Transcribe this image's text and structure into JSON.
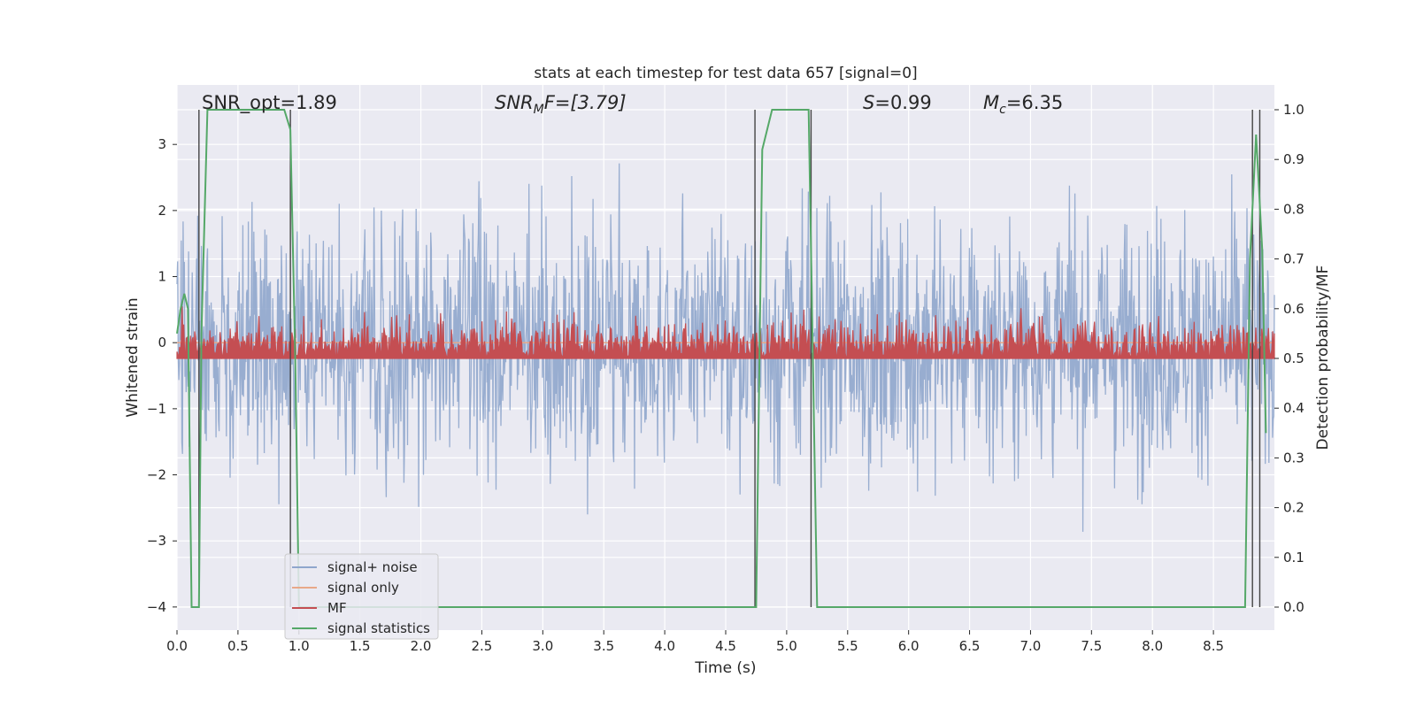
{
  "chart_data": {
    "type": "line",
    "title": "stats at each timestep for test data 657 [signal=0]",
    "xlabel": "Time (s)",
    "ylabel_left": "Whitened strain",
    "ylabel_right": "Detection probability/MF",
    "xlim": [
      0.0,
      9.0
    ],
    "ylim_left": [
      -4.35,
      3.9
    ],
    "ylim_right": [
      0.0,
      1.0
    ],
    "xticks": [
      "0.0",
      "0.5",
      "1.0",
      "1.5",
      "2.0",
      "2.5",
      "3.0",
      "3.5",
      "4.0",
      "4.5",
      "5.0",
      "5.5",
      "6.0",
      "6.5",
      "7.0",
      "7.5",
      "8.0",
      "8.5"
    ],
    "yticks_left": [
      "3",
      "2",
      "1",
      "0",
      "−1",
      "−2",
      "−3",
      "−4"
    ],
    "yticks_right": [
      "1.0",
      "0.9",
      "0.8",
      "0.7",
      "0.6",
      "0.5",
      "0.4",
      "0.3",
      "0.2",
      "0.1",
      "0.0"
    ],
    "grid": true,
    "legend_position": "lower-left",
    "annotations": {
      "snr_opt": "SNR_opt=1.89",
      "snr_mf_main": "SNR",
      "snr_mf_sub": "M",
      "snr_mf_rest": "F=[3.79]",
      "s_main": "S",
      "s_rest": "=0.99",
      "mc_main": "M",
      "mc_sub": "c",
      "mc_rest": "=6.35"
    },
    "series": [
      {
        "name": "signal+ noise",
        "color": "#8fa6cc",
        "noise_std": 0.92,
        "noise_clip": [
          -3.6,
          3.3
        ]
      },
      {
        "name": "signal only",
        "color": "#e8a889",
        "values_constant": 0.0
      },
      {
        "name": "MF",
        "color": "#c44e52",
        "baseline": 0.5,
        "range_right": [
          0.5,
          0.62
        ]
      },
      {
        "name": "signal statistics",
        "color": "#55a868",
        "x": [
          0.0,
          0.03,
          0.06,
          0.09,
          0.12,
          0.15,
          0.18,
          0.2,
          0.25,
          0.3,
          0.5,
          0.7,
          0.88,
          0.93,
          0.97,
          1.0,
          1.5,
          2.0,
          3.0,
          4.0,
          4.6,
          4.75,
          4.8,
          4.88,
          5.0,
          5.18,
          5.25,
          5.5,
          6.0,
          7.0,
          8.0,
          8.7,
          8.76,
          8.8,
          8.85,
          8.9,
          8.93
        ],
        "y": [
          0.55,
          0.6,
          0.63,
          0.6,
          0.0,
          0.0,
          0.0,
          0.55,
          1.0,
          1.0,
          1.0,
          1.0,
          1.0,
          0.96,
          0.5,
          0.0,
          0.0,
          0.0,
          0.0,
          0.0,
          0.0,
          0.0,
          0.92,
          1.0,
          1.0,
          1.0,
          0.0,
          0.0,
          0.0,
          0.0,
          0.0,
          0.0,
          0.0,
          0.7,
          0.95,
          0.72,
          0.35
        ]
      }
    ],
    "vertical_markers_x": [
      0.18,
      0.93,
      4.74,
      5.2,
      8.82,
      8.88
    ],
    "legend": [
      "signal+ noise",
      "signal only",
      "MF",
      "signal statistics"
    ]
  }
}
